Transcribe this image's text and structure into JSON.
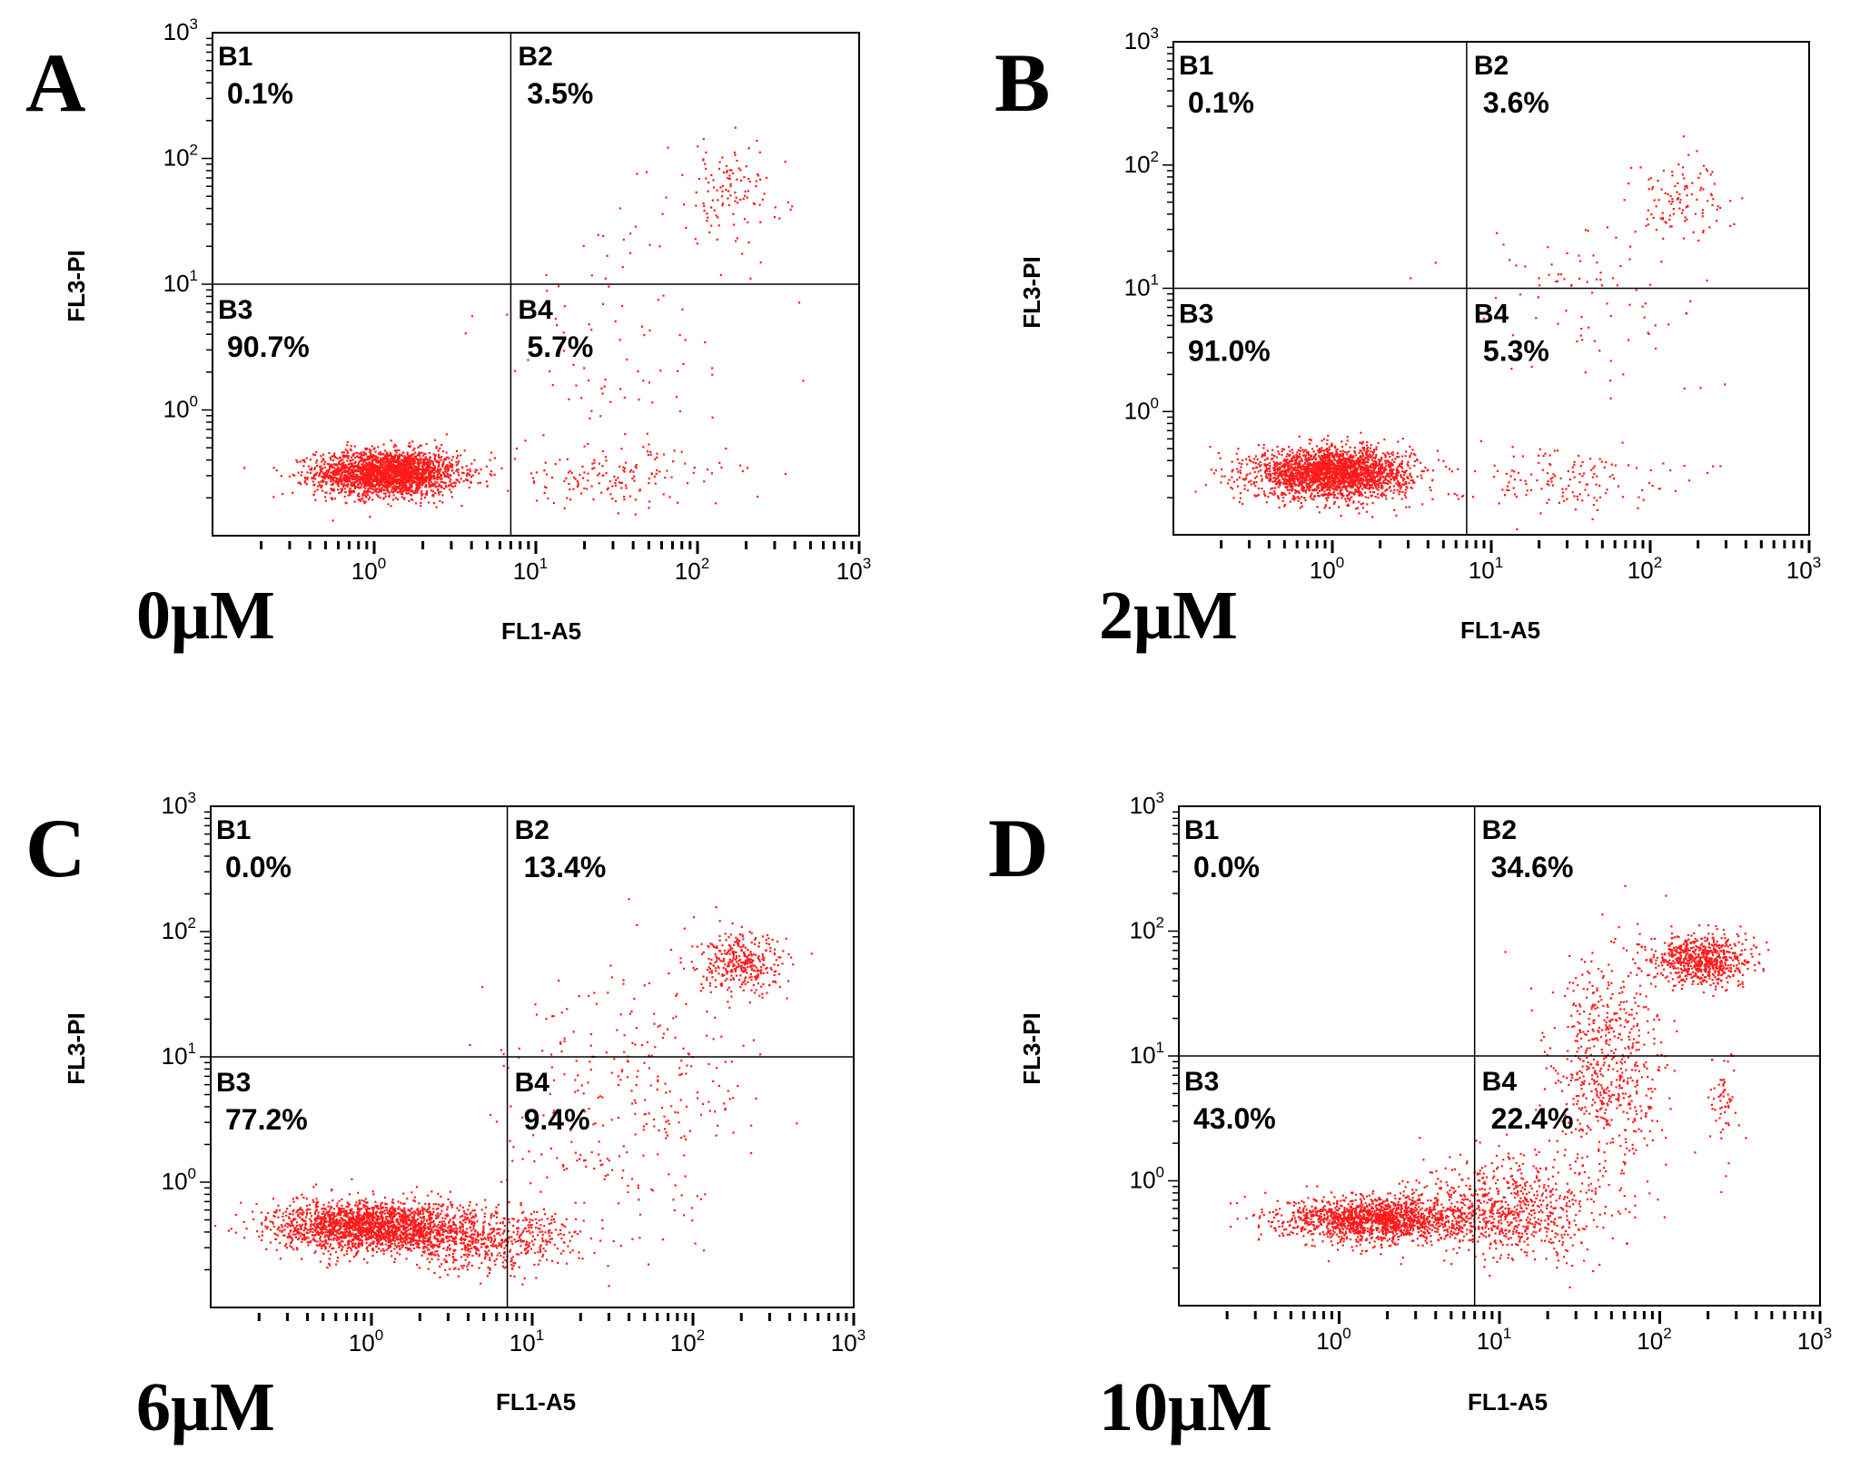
{
  "chart_data": [
    {
      "type": "scatter",
      "panel": "A",
      "condition": "0μM",
      "xlabel": "FL1-A5",
      "ylabel": "FL3-PI",
      "xscale": "log",
      "yscale": "log",
      "xlim": [
        0.1,
        1000
      ],
      "ylim": [
        0.1,
        1000
      ],
      "x_ticks": [
        "10",
        "10",
        "10",
        "10"
      ],
      "x_tick_exponents": [
        "0",
        "1",
        "2",
        "3"
      ],
      "y_ticks": [
        "10",
        "10",
        "10",
        "10"
      ],
      "y_tick_exponents": [
        "0",
        "1",
        "2",
        "3"
      ],
      "gates": {
        "x": 7,
        "y": 10
      },
      "quadrants": [
        {
          "name": "B1",
          "percent": "0.1%"
        },
        {
          "name": "B2",
          "percent": "3.5%"
        },
        {
          "name": "B3",
          "percent": "90.7%"
        },
        {
          "name": "B4",
          "percent": "5.7%"
        }
      ],
      "clusters": [
        {
          "x": 1.2,
          "y": 0.32,
          "sx": 0.22,
          "sy": 0.09,
          "n": 2400
        },
        {
          "x": 30,
          "y": 0.3,
          "sx": 0.35,
          "sy": 0.12,
          "n": 160
        },
        {
          "x": 150,
          "y": 55,
          "sx": 0.18,
          "sy": 0.2,
          "n": 120
        },
        {
          "x": 35,
          "y": 4,
          "sx": 0.45,
          "sy": 0.5,
          "n": 90
        }
      ]
    },
    {
      "type": "scatter",
      "panel": "B",
      "condition": "2μM",
      "xlabel": "FL1-A5",
      "ylabel": "FL3-PI",
      "xscale": "log",
      "yscale": "log",
      "xlim": [
        0.1,
        1000
      ],
      "ylim": [
        0.1,
        1000
      ],
      "x_ticks": [
        "10",
        "10",
        "10",
        "10"
      ],
      "x_tick_exponents": [
        "0",
        "1",
        "2",
        "3"
      ],
      "y_ticks": [
        "10",
        "10",
        "10",
        "10"
      ],
      "y_tick_exponents": [
        "0",
        "1",
        "2",
        "3"
      ],
      "gates": {
        "x": 7,
        "y": 10
      },
      "quadrants": [
        {
          "name": "B1",
          "percent": "0.1%"
        },
        {
          "name": "B2",
          "percent": "3.6%"
        },
        {
          "name": "B3",
          "percent": "91.0%"
        },
        {
          "name": "B4",
          "percent": "5.3%"
        }
      ],
      "clusters": [
        {
          "x": 1.0,
          "y": 0.32,
          "sx": 0.24,
          "sy": 0.1,
          "n": 2400
        },
        {
          "x": 25,
          "y": 0.3,
          "sx": 0.35,
          "sy": 0.12,
          "n": 150
        },
        {
          "x": 150,
          "y": 55,
          "sx": 0.15,
          "sy": 0.17,
          "n": 110
        },
        {
          "x": 40,
          "y": 8,
          "sx": 0.4,
          "sy": 0.4,
          "n": 90
        }
      ]
    },
    {
      "type": "scatter",
      "panel": "C",
      "condition": "6μM",
      "xlabel": "FL1-A5",
      "ylabel": "FL3-PI",
      "xscale": "log",
      "yscale": "log",
      "xlim": [
        0.1,
        1000
      ],
      "ylim": [
        0.1,
        1000
      ],
      "x_ticks": [
        "10",
        "10",
        "10",
        "10"
      ],
      "x_tick_exponents": [
        "0",
        "1",
        "2",
        "3"
      ],
      "y_ticks": [
        "10",
        "10",
        "10",
        "10"
      ],
      "y_tick_exponents": [
        "0",
        "1",
        "2",
        "3"
      ],
      "gates": {
        "x": 7,
        "y": 10
      },
      "quadrants": [
        {
          "name": "B1",
          "percent": "0.0%"
        },
        {
          "name": "B2",
          "percent": "13.4%"
        },
        {
          "name": "B3",
          "percent": "77.2%"
        },
        {
          "name": "B4",
          "percent": "9.4%"
        }
      ],
      "clusters": [
        {
          "x": 1.0,
          "y": 0.45,
          "sx": 0.3,
          "sy": 0.1,
          "n": 2000
        },
        {
          "x": 5,
          "y": 0.35,
          "sx": 0.3,
          "sy": 0.12,
          "n": 600
        },
        {
          "x": 200,
          "y": 55,
          "sx": 0.14,
          "sy": 0.12,
          "n": 350
        },
        {
          "x": 40,
          "y": 5,
          "sx": 0.4,
          "sy": 0.5,
          "n": 300
        }
      ]
    },
    {
      "type": "scatter",
      "panel": "D",
      "condition": "10μM",
      "xlabel": "FL1-A5",
      "ylabel": "FL3-PI",
      "xscale": "log",
      "yscale": "log",
      "xlim": [
        0.1,
        1000
      ],
      "ylim": [
        0.1,
        1000
      ],
      "x_ticks": [
        "10",
        "10",
        "10",
        "10"
      ],
      "x_tick_exponents": [
        "0",
        "1",
        "2",
        "3"
      ],
      "y_ticks": [
        "10",
        "10",
        "10",
        "10"
      ],
      "y_tick_exponents": [
        "0",
        "1",
        "2",
        "3"
      ],
      "gates": {
        "x": 7,
        "y": 10
      },
      "quadrants": [
        {
          "name": "B1",
          "percent": "0.0%"
        },
        {
          "name": "B2",
          "percent": "34.6%"
        },
        {
          "name": "B3",
          "percent": "43.0%"
        },
        {
          "name": "B4",
          "percent": "22.4%"
        }
      ],
      "clusters": [
        {
          "x": 1.8,
          "y": 0.5,
          "sx": 0.3,
          "sy": 0.09,
          "n": 1600
        },
        {
          "x": 12,
          "y": 0.6,
          "sx": 0.3,
          "sy": 0.2,
          "n": 700
        },
        {
          "x": 180,
          "y": 60,
          "sx": 0.15,
          "sy": 0.1,
          "n": 700
        },
        {
          "x": 45,
          "y": 8,
          "sx": 0.18,
          "sy": 0.45,
          "n": 600
        },
        {
          "x": 250,
          "y": 4,
          "sx": 0.05,
          "sy": 0.2,
          "n": 60
        }
      ]
    }
  ]
}
